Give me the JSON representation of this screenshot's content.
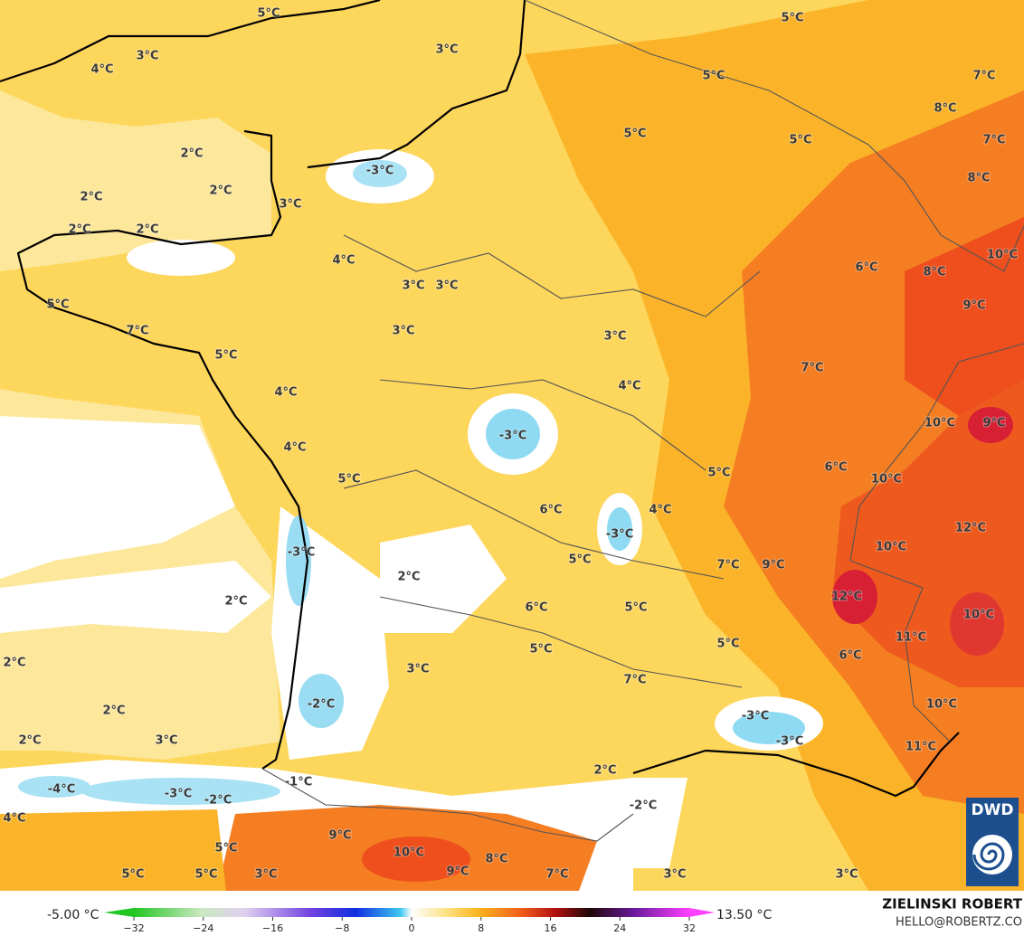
{
  "map": {
    "labels": [
      "5°C",
      "4°C",
      "3°C",
      "3°C",
      "5°C",
      "5°C",
      "7°C",
      "8°C",
      "7°C",
      "5°C",
      "5°C",
      "8°C",
      "2°C",
      "2°C",
      "2°C",
      "3°C",
      "-3°C",
      "2°C",
      "2°C",
      "4°C",
      "6°C",
      "8°C",
      "10°C",
      "5°C",
      "3°C",
      "3°C",
      "9°C",
      "7°C",
      "3°C",
      "3°C",
      "5°C",
      "7°C",
      "4°C",
      "4°C",
      "-3°C",
      "10°C",
      "9°C",
      "4°C",
      "5°C",
      "5°C",
      "6°C",
      "10°C",
      "6°C",
      "4°C",
      "12°C",
      "-3°C",
      "-3°C",
      "10°C",
      "5°C",
      "7°C",
      "9°C",
      "2°C",
      "2°C",
      "12°C",
      "6°C",
      "5°C",
      "10°C",
      "11°C",
      "5°C",
      "5°C",
      "6°C",
      "2°C",
      "3°C",
      "7°C",
      "-2°C",
      "10°C",
      "2°C",
      "-3°C",
      "2°C",
      "3°C",
      "-3°C",
      "11°C",
      "2°C",
      "-1°C",
      "-4°C",
      "-3°C",
      "-2°C",
      "-2°C",
      "4°C",
      "9°C",
      "10°C",
      "5°C",
      "8°C",
      "9°C",
      "5°C",
      "5°C",
      "3°C",
      "7°C",
      "3°C",
      "3°C"
    ]
  },
  "colorbar": {
    "min_label": "-5.00 °C",
    "max_label": "13.50 °C",
    "lim": [
      -32,
      32
    ],
    "ticks": [
      {
        "value": -32,
        "label": "−32"
      },
      {
        "value": -24,
        "label": "−24"
      },
      {
        "value": -16,
        "label": "−16"
      },
      {
        "value": -8,
        "label": "−8"
      },
      0,
      8,
      16,
      24,
      32
    ]
  },
  "credit": {
    "name": "ZIELINSKI ROBERT",
    "email": "HELLO@ROBERTZ.CO"
  },
  "logo": "DWD"
}
